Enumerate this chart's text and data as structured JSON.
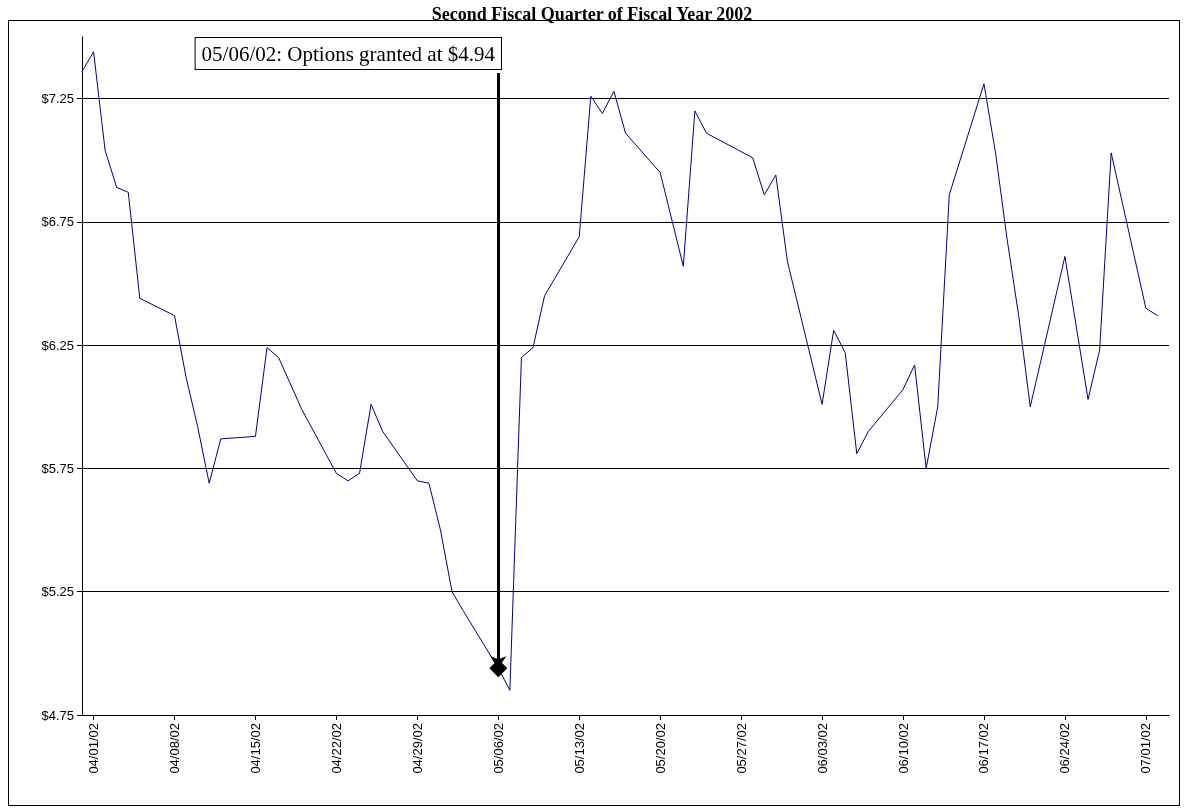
{
  "chart_data": {
    "type": "line",
    "title": "Second Fiscal Quarter of Fiscal Year 2002",
    "xlim": [
      "2002-03-31",
      "2002-07-03"
    ],
    "xticks": [
      {
        "value": "2002-04-01",
        "label": "04/01/02"
      },
      {
        "value": "2002-04-08",
        "label": "04/08/02"
      },
      {
        "value": "2002-04-15",
        "label": "04/15/02"
      },
      {
        "value": "2002-04-22",
        "label": "04/22/02"
      },
      {
        "value": "2002-04-29",
        "label": "04/29/02"
      },
      {
        "value": "2002-05-06",
        "label": "05/06/02"
      },
      {
        "value": "2002-05-13",
        "label": "05/13/02"
      },
      {
        "value": "2002-05-20",
        "label": "05/20/02"
      },
      {
        "value": "2002-05-27",
        "label": "05/27/02"
      },
      {
        "value": "2002-06-03",
        "label": "06/03/02"
      },
      {
        "value": "2002-06-10",
        "label": "06/10/02"
      },
      {
        "value": "2002-06-17",
        "label": "06/17/02"
      },
      {
        "value": "2002-06-24",
        "label": "06/24/02"
      },
      {
        "value": "2002-07-01",
        "label": "07/01/02"
      }
    ],
    "ylim": [
      4.75,
      7.5
    ],
    "yticks": [
      {
        "value": 4.75,
        "label": "$4.75"
      },
      {
        "value": 5.25,
        "label": "$5.25"
      },
      {
        "value": 5.75,
        "label": "$5.75"
      },
      {
        "value": 6.25,
        "label": "$6.25"
      },
      {
        "value": 6.75,
        "label": "$6.75"
      },
      {
        "value": 7.25,
        "label": "$7.25"
      }
    ],
    "grid": "y",
    "series": [
      {
        "color": "#000080",
        "marker": "none",
        "line_style": "solid",
        "x": [
          "2002-03-31",
          "2002-04-01",
          "2002-04-02",
          "2002-04-03",
          "2002-04-04",
          "2002-04-05",
          "2002-04-08",
          "2002-04-09",
          "2002-04-10",
          "2002-04-11",
          "2002-04-12",
          "2002-04-15",
          "2002-04-16",
          "2002-04-17",
          "2002-04-19",
          "2002-04-22",
          "2002-04-23",
          "2002-04-24",
          "2002-04-25",
          "2002-04-26",
          "2002-04-29",
          "2002-04-30",
          "2002-05-01",
          "2002-05-02",
          "2002-05-03",
          "2002-05-06",
          "2002-05-07",
          "2002-05-08",
          "2002-05-09",
          "2002-05-10",
          "2002-05-13",
          "2002-05-14",
          "2002-05-15",
          "2002-05-16",
          "2002-05-17",
          "2002-05-20",
          "2002-05-22",
          "2002-05-23",
          "2002-05-24",
          "2002-05-28",
          "2002-05-29",
          "2002-05-30",
          "2002-05-31",
          "2002-06-03",
          "2002-06-04",
          "2002-06-05",
          "2002-06-06",
          "2002-06-07",
          "2002-06-10",
          "2002-06-11",
          "2002-06-12",
          "2002-06-13",
          "2002-06-14",
          "2002-06-17",
          "2002-06-18",
          "2002-06-19",
          "2002-06-20",
          "2002-06-21",
          "2002-06-24",
          "2002-06-26",
          "2002-06-27",
          "2002-06-28",
          "2002-07-01",
          "2002-07-02"
        ],
        "values": [
          7.36,
          7.44,
          7.04,
          6.89,
          6.87,
          6.44,
          6.37,
          6.12,
          5.92,
          5.69,
          5.87,
          5.88,
          6.24,
          6.2,
          5.99,
          5.73,
          5.7,
          5.73,
          6.01,
          5.9,
          5.7,
          5.69,
          5.5,
          5.25,
          5.17,
          4.94,
          4.85,
          6.2,
          6.24,
          6.45,
          6.69,
          7.26,
          7.19,
          7.28,
          7.11,
          6.95,
          6.57,
          7.2,
          7.11,
          7.01,
          6.86,
          6.94,
          6.59,
          6.01,
          6.31,
          6.22,
          5.81,
          5.9,
          6.07,
          6.17,
          5.75,
          6.0,
          6.86,
          7.31,
          7.03,
          6.68,
          6.37,
          6.0,
          6.61,
          6.03,
          6.23,
          7.03,
          6.4,
          6.37
        ]
      },
      {
        "type": "scatter",
        "color": "#000000",
        "marker": "diamond",
        "x": [
          "2002-05-06"
        ],
        "values": [
          4.94
        ]
      }
    ],
    "annotations": [
      {
        "text": "05/06/02: Options granted at $4.94",
        "x": "2002-05-06",
        "y": 4.94
      }
    ]
  }
}
